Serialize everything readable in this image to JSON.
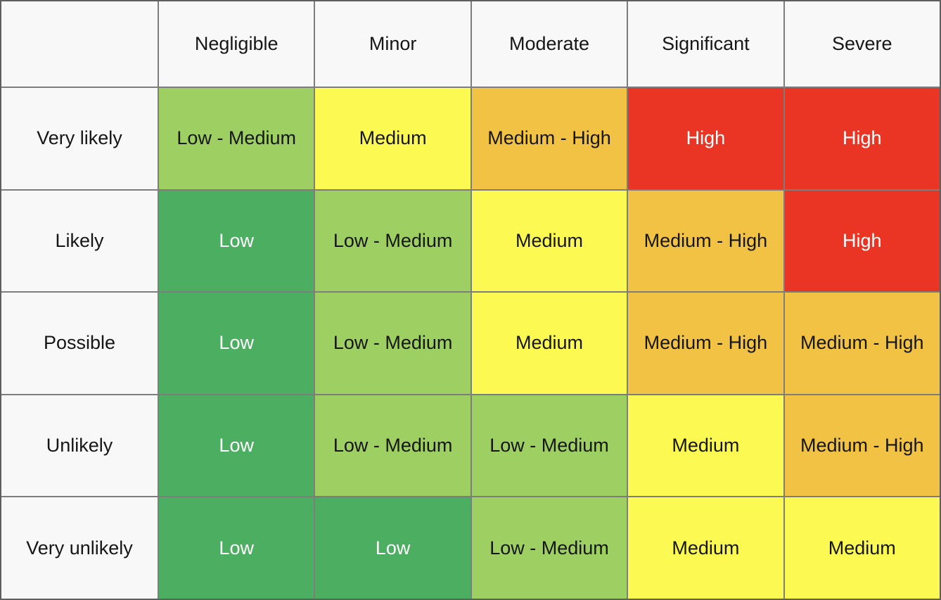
{
  "chart_data": {
    "type": "heatmap",
    "description": "Risk assessment matrix: likelihood (rows) vs impact severity (columns)",
    "corner": "",
    "columns": [
      "Negligible",
      "Minor",
      "Moderate",
      "Significant",
      "Severe"
    ],
    "rows": [
      "Very likely",
      "Likely",
      "Possible",
      "Unlikely",
      "Very unlikely"
    ],
    "values": [
      [
        "Low - Medium",
        "Medium",
        "Medium - High",
        "High",
        "High"
      ],
      [
        "Low",
        "Low - Medium",
        "Medium",
        "Medium - High",
        "High"
      ],
      [
        "Low",
        "Low - Medium",
        "Medium",
        "Medium - High",
        "Medium - High"
      ],
      [
        "Low",
        "Low - Medium",
        "Low - Medium",
        "Medium",
        "Medium - High"
      ],
      [
        "Low",
        "Low",
        "Low - Medium",
        "Medium",
        "Medium"
      ]
    ],
    "levels": [
      [
        "low-medium",
        "medium",
        "medium-high",
        "high",
        "high"
      ],
      [
        "low",
        "low-medium",
        "medium",
        "medium-high",
        "high"
      ],
      [
        "low",
        "low-medium",
        "medium",
        "medium-high",
        "medium-high"
      ],
      [
        "low",
        "low-medium",
        "low-medium",
        "medium",
        "medium-high"
      ],
      [
        "low",
        "low",
        "low-medium",
        "medium",
        "medium"
      ]
    ],
    "level_colors": {
      "low": "#4cae60",
      "low-medium": "#9ecf62",
      "medium": "#fcfa52",
      "medium-high": "#f1c243",
      "high": "#eb3524"
    },
    "layout_colors": {
      "header_background": "#f8f8f8",
      "grid_line": "#7d7d7d",
      "outer_border": "#5f5f5f",
      "text_dark": "#161616",
      "text_light": "#ffffff"
    },
    "legend_position": "none",
    "grid": true
  }
}
